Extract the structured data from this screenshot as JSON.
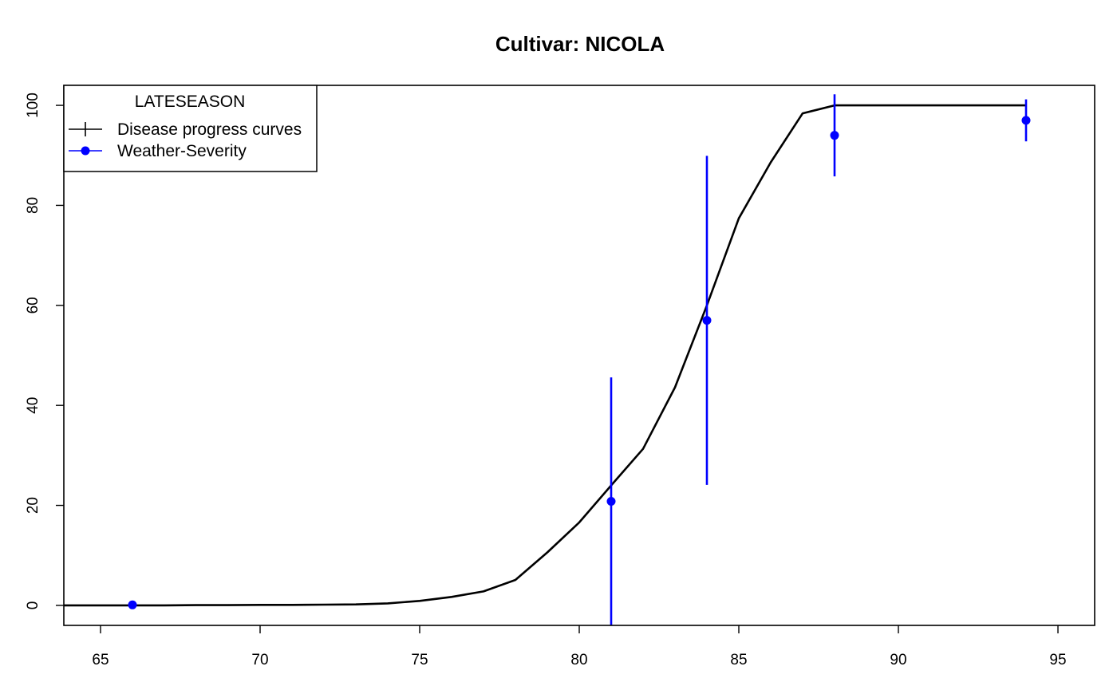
{
  "chart_data": {
    "type": "line",
    "title": "Cultivar: NICOLA",
    "xlabel": "",
    "ylabel": "",
    "xlim": [
      63.85,
      96.15
    ],
    "ylim": [
      -4,
      104
    ],
    "xticks": [
      65,
      70,
      75,
      80,
      85,
      90,
      95
    ],
    "yticks": [
      0,
      20,
      40,
      60,
      80,
      100
    ],
    "grid": false,
    "legend": {
      "title": "LATESEASON",
      "placement": "top-left",
      "entries": [
        {
          "label": "Disease progress curves",
          "color": "#000000",
          "marker": "plus"
        },
        {
          "label": "Weather-Severity",
          "color": "#0000ff",
          "marker": "filled-circle"
        }
      ]
    },
    "series": [
      {
        "name": "Disease progress curves",
        "color": "#000000",
        "x": [
          63,
          64,
          65,
          66,
          67,
          68,
          69,
          70,
          71,
          72,
          73,
          74,
          75,
          76,
          77,
          78,
          79,
          80,
          81,
          82,
          83,
          84,
          85,
          86,
          87,
          88,
          89,
          90,
          91,
          92,
          93,
          94
        ],
        "y": [
          0.0,
          0.0,
          0.0,
          0.0,
          0.0,
          0.05,
          0.05,
          0.1,
          0.1,
          0.15,
          0.2,
          0.4,
          0.9,
          1.7,
          2.8,
          5.1,
          10.6,
          16.6,
          24.0,
          31.3,
          43.6,
          60.0,
          77.4,
          88.6,
          98.4,
          100,
          100,
          100,
          100,
          100,
          100,
          100
        ]
      },
      {
        "name": "Weather-Severity",
        "color": "#0000ff",
        "x": [
          66,
          81,
          84,
          88,
          94
        ],
        "y": [
          0.1,
          20.8,
          57.0,
          94.0,
          97.0
        ],
        "error_low": [
          0.1,
          -5,
          24.1,
          85.8,
          92.8
        ],
        "error_high": [
          0.1,
          45.6,
          89.9,
          102.2,
          101.2
        ]
      }
    ]
  }
}
